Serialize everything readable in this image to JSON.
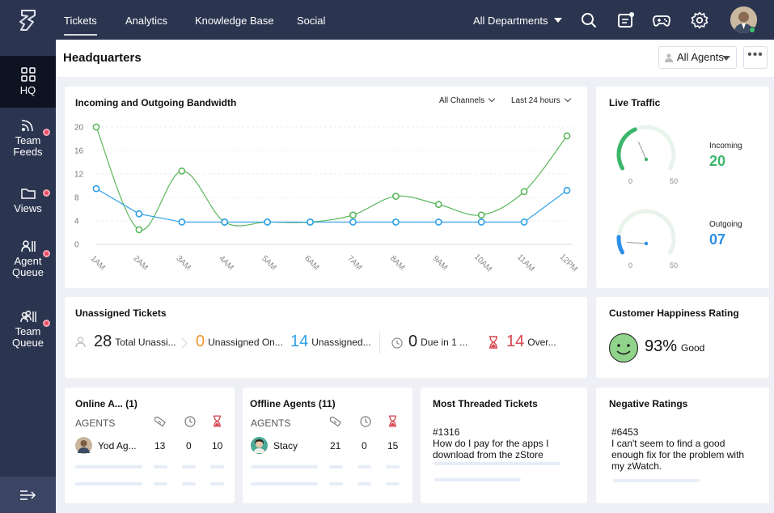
{
  "topnav": {
    "tabs": [
      {
        "label": "Tickets",
        "active": true
      },
      {
        "label": "Analytics"
      },
      {
        "label": "Knowledge Base"
      },
      {
        "label": "Social"
      }
    ],
    "department": "All Departments",
    "icons": [
      "search-icon",
      "compose-icon",
      "gamepad-icon",
      "gear-icon"
    ]
  },
  "sidebar": {
    "items": [
      {
        "label": "HQ",
        "icon": "grid-icon",
        "active": true
      },
      {
        "label": "Team\nFeeds",
        "icon": "feed-icon",
        "badge": true
      },
      {
        "label": "Views",
        "icon": "folder-icon",
        "badge": true
      },
      {
        "label": "Agent\nQueue",
        "icon": "agent-icon",
        "badge": true
      },
      {
        "label": "Team\nQueue",
        "icon": "team-icon",
        "badge": true
      }
    ],
    "collapse_icon": "collapse-icon"
  },
  "header": {
    "title": "Headquarters",
    "agents_filter": "All Agents",
    "more_label": "•••"
  },
  "bandwidth": {
    "title": "Incoming and Outgoing Bandwidth",
    "channel_filter": "All Channels",
    "time_filter": "Last 24 hours"
  },
  "chart_data": {
    "type": "line",
    "categories": [
      "1AM",
      "2AM",
      "3AM",
      "4AM",
      "5AM",
      "6AM",
      "7AM",
      "8AM",
      "9AM",
      "10AM",
      "11AM",
      "12PM"
    ],
    "series": [
      {
        "color": "#5cb85c",
        "values": [
          20,
          2.5,
          12.5,
          3.8,
          3.8,
          3.8,
          5,
          8.2,
          6.8,
          5,
          9,
          18.5
        ]
      },
      {
        "color": "#2d9fe6",
        "values": [
          9.5,
          5.2,
          3.8,
          3.8,
          3.8,
          3.8,
          3.8,
          3.8,
          3.8,
          3.8,
          3.8,
          9.2
        ]
      }
    ],
    "yticks": [
      0,
      4,
      8,
      12,
      16,
      20
    ],
    "ylim": [
      0,
      20
    ],
    "grid": true
  },
  "live_traffic": {
    "title": "Live Traffic",
    "incoming": {
      "label": "Incoming",
      "value": "20",
      "min": "0",
      "max": "50",
      "color": "#3cb66a"
    },
    "outgoing": {
      "label": "Outgoing",
      "value": "07",
      "min": "0",
      "max": "50",
      "color": "#2d8fe6"
    }
  },
  "unassigned": {
    "title": "Unassigned Tickets",
    "total": {
      "value": "28",
      "label": "Total Unassi..."
    },
    "online": {
      "value": "0",
      "label": "Unassigned On...",
      "color": "#f0962e"
    },
    "offline": {
      "value": "14",
      "label": "Unassigned...",
      "color": "#2d9fe6"
    },
    "due": {
      "value": "0",
      "label": "Due in 1 ..."
    },
    "overdue": {
      "value": "14",
      "label": "Over...",
      "color": "#d9434c"
    }
  },
  "happiness": {
    "title": "Customer Happiness Rating",
    "percent": "93%",
    "label": "Good"
  },
  "online_agents": {
    "title": "Online A... (1)",
    "header": "AGENTS",
    "row": {
      "name": "Yod Ag...",
      "tickets": "13",
      "due": "0",
      "overdue": "10"
    }
  },
  "offline_agents": {
    "title": "Offline Agents (11)",
    "header": "AGENTS",
    "row": {
      "name": "Stacy",
      "tickets": "21",
      "due": "0",
      "overdue": "15"
    }
  },
  "threaded": {
    "title": "Most Threaded Tickets",
    "id": "#1316",
    "text": "How do I pay for the apps I download from the zStore"
  },
  "negative": {
    "title": "Negative Ratings",
    "id": "#6453",
    "text": "I can't seem to find a good enough fix for the problem with my zWatch."
  }
}
